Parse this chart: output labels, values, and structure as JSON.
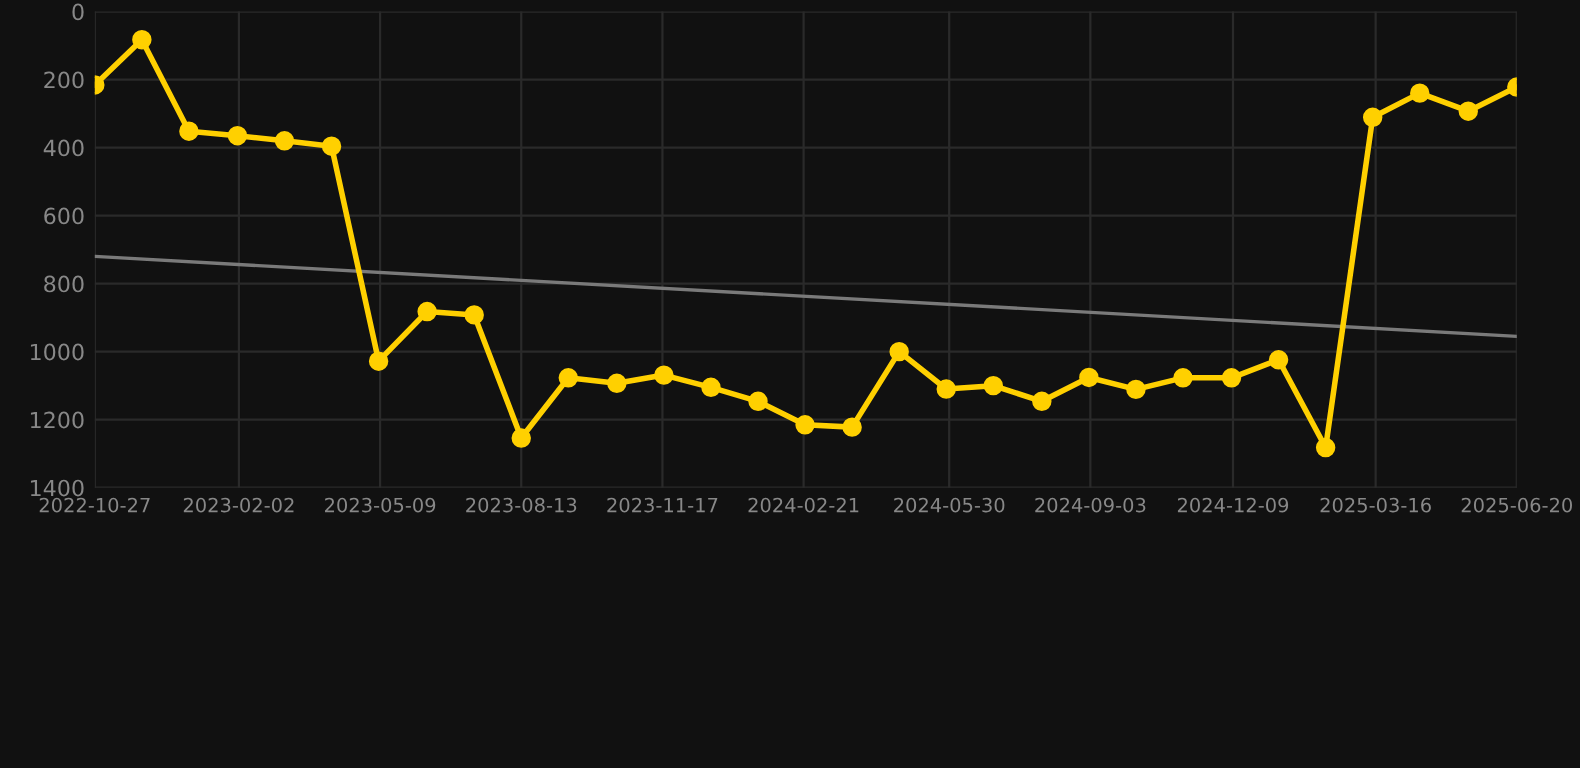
{
  "chart_data": {
    "type": "line",
    "x": [
      "2022-10-27",
      "2022-11-28",
      "2022-12-30",
      "2023-02-01",
      "2023-03-05",
      "2023-04-06",
      "2023-05-08",
      "2023-06-10",
      "2023-07-12",
      "2023-08-13",
      "2023-09-14",
      "2023-10-17",
      "2023-11-18",
      "2023-12-20",
      "2024-01-21",
      "2024-02-22",
      "2024-03-25",
      "2024-04-26",
      "2024-05-28",
      "2024-06-29",
      "2024-08-01",
      "2024-09-02",
      "2024-10-04",
      "2024-11-05",
      "2024-12-08",
      "2025-01-09",
      "2025-02-10",
      "2025-03-14",
      "2025-04-15",
      "2025-05-18",
      "2025-06-20"
    ],
    "series": [
      {
        "color": "#ffd000",
        "marker": "circle",
        "values": [
          216,
          83,
          352,
          365,
          380,
          396,
          1028,
          882,
          892,
          1254,
          1077,
          1093,
          1069,
          1105,
          1146,
          1215,
          1222,
          1000,
          1110,
          1100,
          1146,
          1076,
          1111,
          1077,
          1077,
          1024,
          1282,
          311,
          240,
          293,
          222
        ]
      },
      {
        "type": "line",
        "color": "#7a7a7a",
        "marker": "none",
        "x": [
          "2022-10-27",
          "2025-06-20"
        ],
        "values": [
          720,
          955
        ]
      }
    ],
    "ylim": [
      1400,
      0
    ],
    "yticks": [
      0,
      200,
      400,
      600,
      800,
      1000,
      1200,
      1400
    ],
    "xlim": [
      "2022-10-27",
      "2025-06-20"
    ],
    "xticks": [
      "2022-10-27",
      "2023-02-02",
      "2023-05-09",
      "2023-08-13",
      "2023-11-17",
      "2024-02-21",
      "2024-05-30",
      "2024-09-03",
      "2024-12-09",
      "2025-03-16",
      "2025-06-20"
    ],
    "grid": true,
    "line_style": "solid"
  }
}
